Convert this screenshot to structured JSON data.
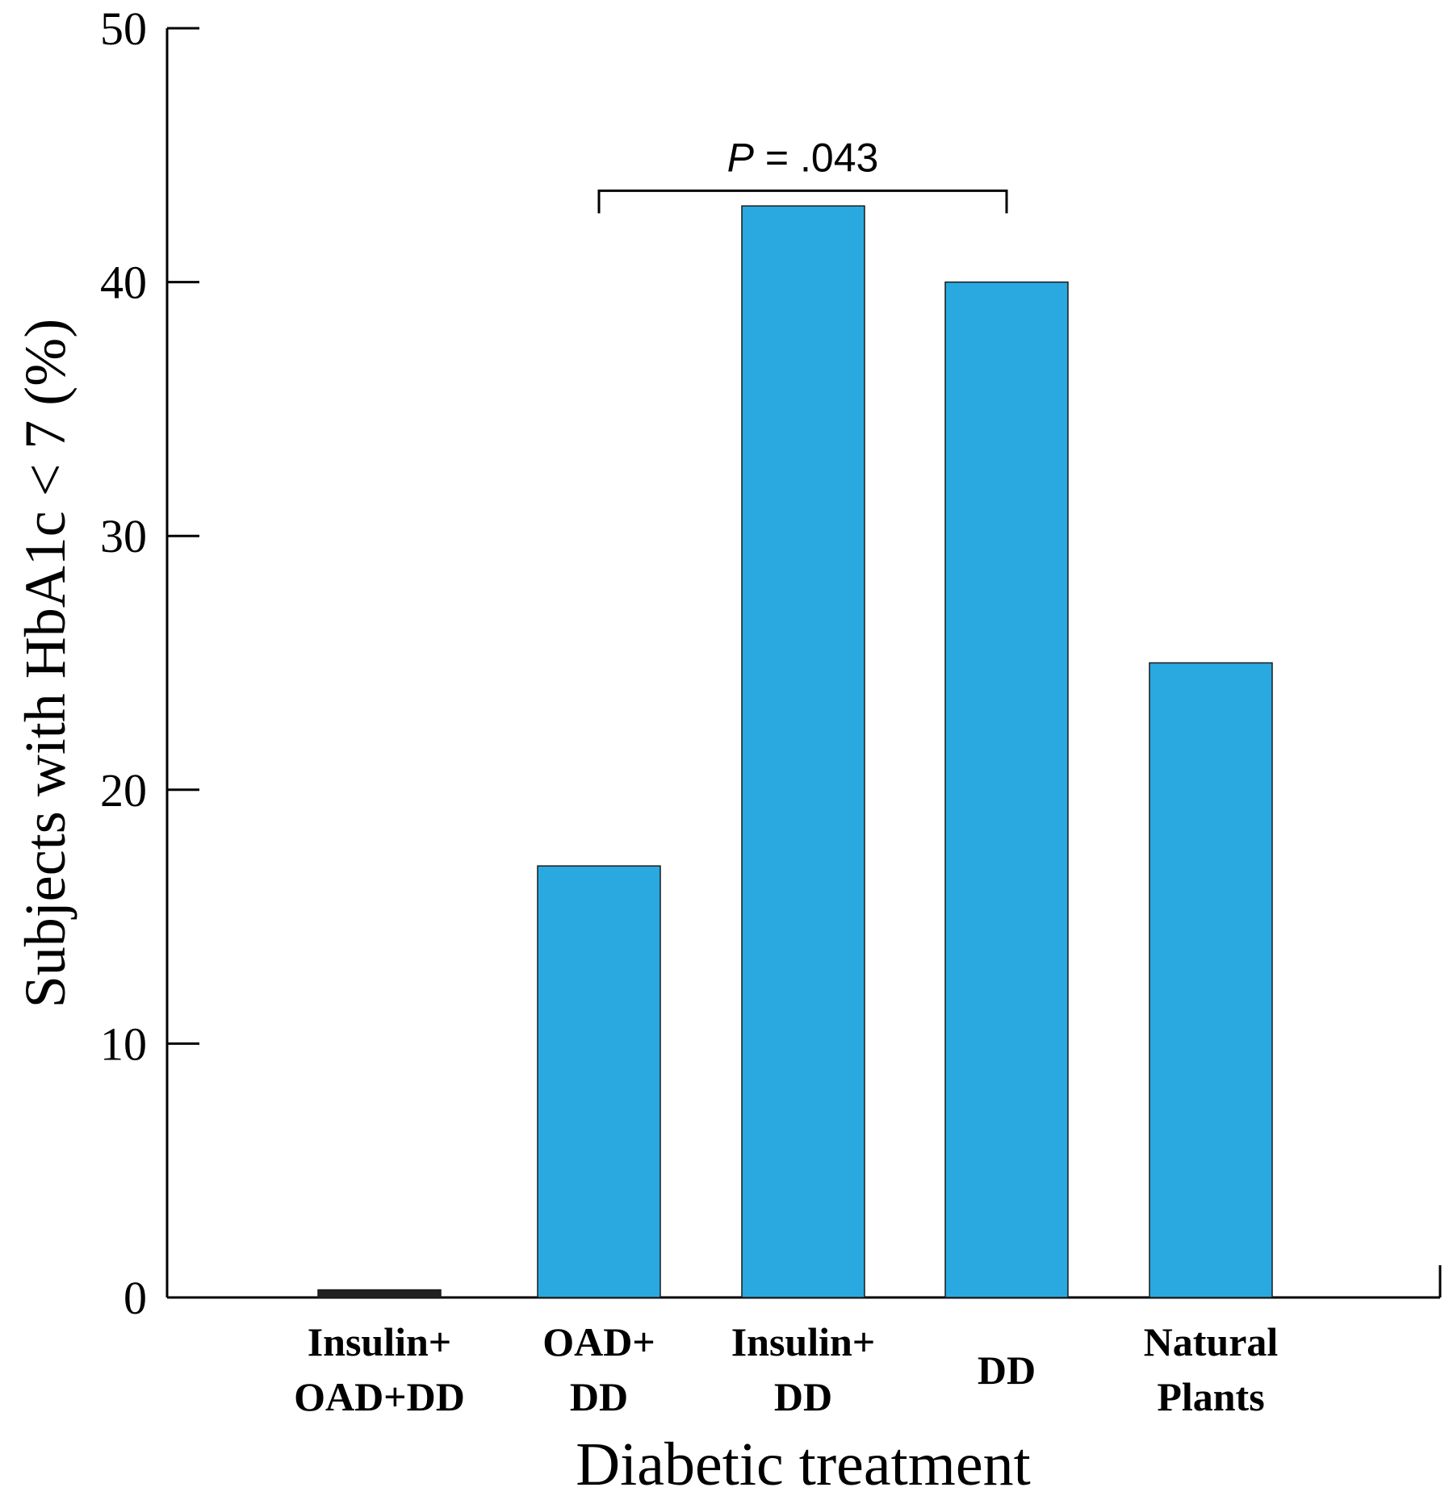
{
  "chart_data": {
    "type": "bar",
    "categories": [
      [
        "Insulin+",
        "OAD+DD"
      ],
      [
        "OAD+",
        "DD"
      ],
      [
        "Insulin+",
        "DD"
      ],
      [
        "DD"
      ],
      [
        "Natural",
        "Plants"
      ]
    ],
    "values": [
      0.3,
      17,
      43,
      40,
      25
    ],
    "xlabel": "Diabetic treatment",
    "ylabel": "Subjects with HbA1c < 7 (%)",
    "ylim": [
      0,
      50
    ],
    "yticks": [
      0,
      10,
      20,
      30,
      40,
      50
    ],
    "grid": false,
    "colors": {
      "bar": "#29a9e0",
      "bar_zero": "#222222",
      "axis": "#000000"
    },
    "annotations": [
      {
        "type": "significance-bracket",
        "from_category": 1,
        "to_category": 3,
        "value": 43.6,
        "p_symbol": "P",
        "p_text": " = .043"
      }
    ]
  }
}
